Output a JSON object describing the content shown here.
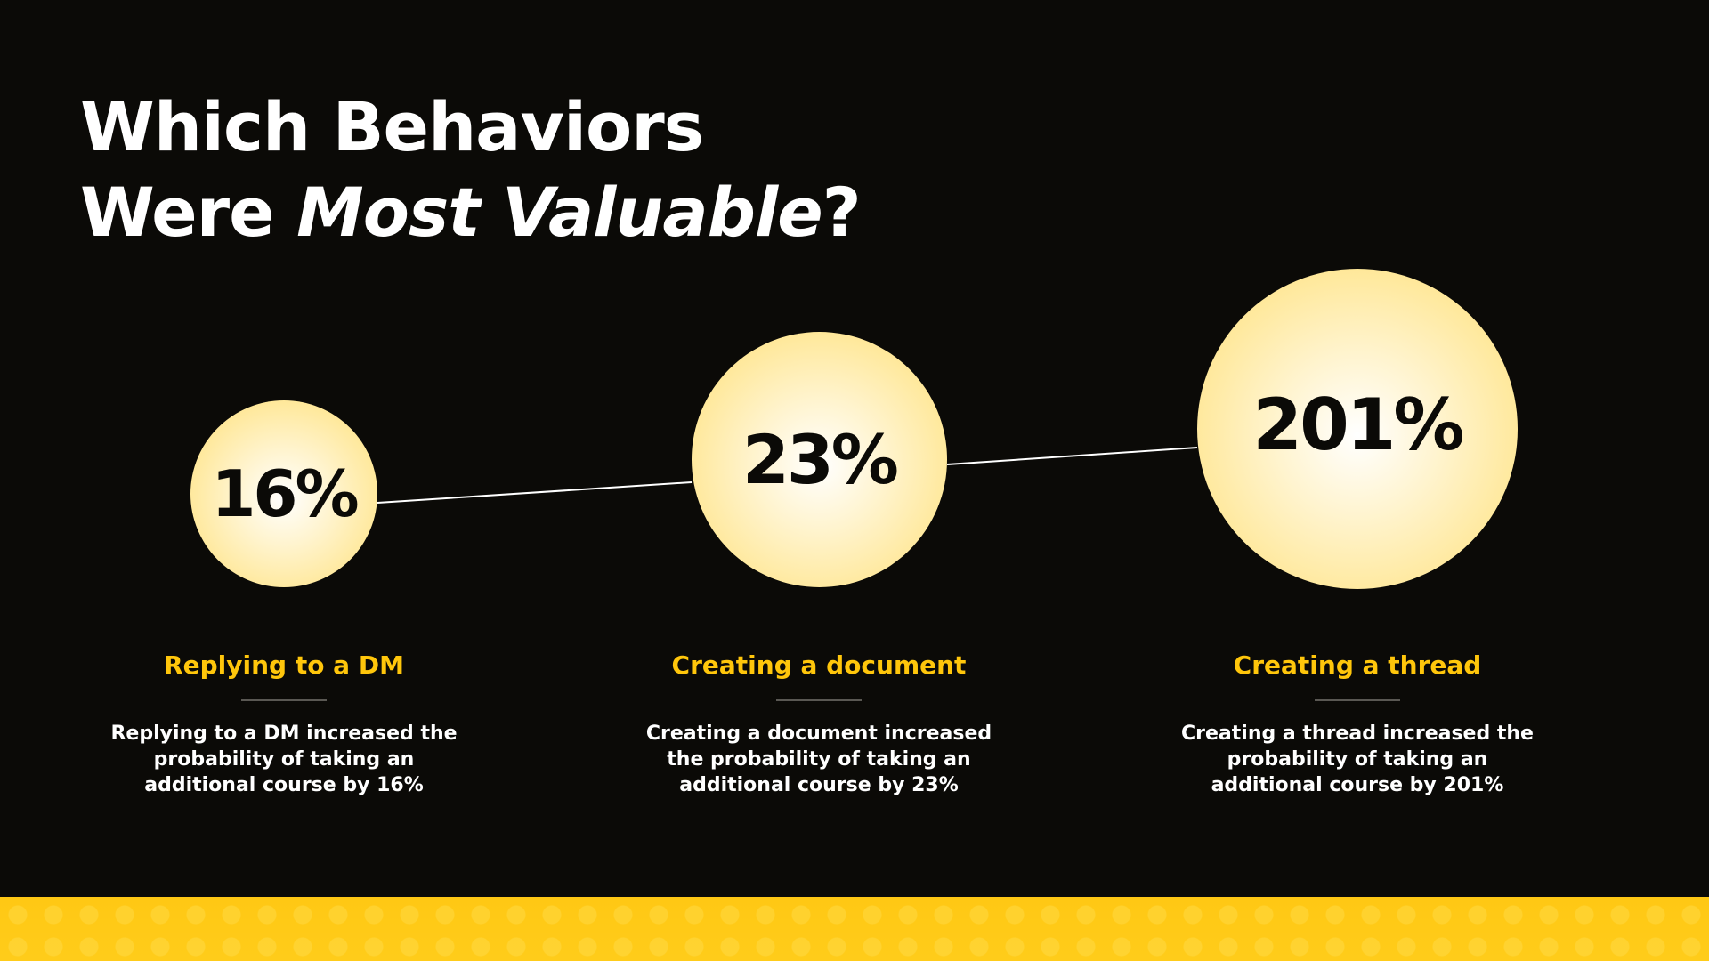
{
  "title": {
    "line1": "Which Behaviors",
    "line2_plain": "Were ",
    "line2_emphasis": "Most Valuable",
    "line2_end": "?"
  },
  "behaviors": [
    {
      "value": "16%",
      "label": "Replying to a DM",
      "description": "Replying to a DM increased the probability of taking an additional course by 16%"
    },
    {
      "value": "23%",
      "label": "Creating a document",
      "description": "Creating a document increased the probability of taking an additional course by 23%"
    },
    {
      "value": "201%",
      "label": "Creating a thread",
      "description": "Creating a thread increased the probability of taking an additional course by 201%"
    }
  ],
  "colors": {
    "background": "#0b0a07",
    "accent": "#ffc60b",
    "circle_fill": "#ffe691",
    "text_light": "#ffffff",
    "text_dark": "#0b0a07"
  }
}
